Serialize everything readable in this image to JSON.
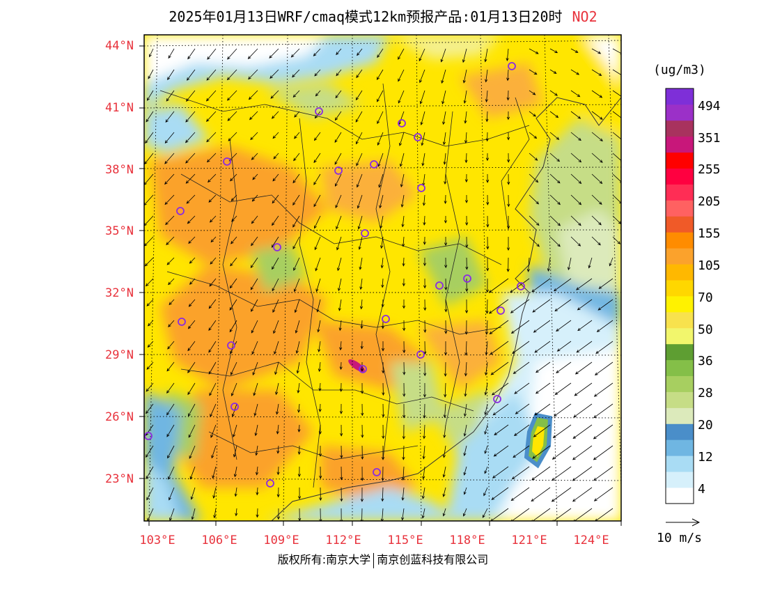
{
  "title": {
    "text": "2025年01月13日WRF/cmaq模式12km预报产品:01月13日20时",
    "pollutant": "NO2"
  },
  "axes": {
    "lat_labels": [
      "44°N",
      "41°N",
      "38°N",
      "35°N",
      "32°N",
      "29°N",
      "26°N",
      "23°N"
    ],
    "lon_labels": [
      "103°E",
      "106°E",
      "109°E",
      "112°E",
      "115°E",
      "118°E",
      "121°E",
      "124°E"
    ]
  },
  "colorbar": {
    "unit": "(ug/m3)",
    "colors": [
      "#ffffff",
      "#d6f0fb",
      "#a9dcf4",
      "#6fb6e2",
      "#4a8ec9",
      "#dceabb",
      "#c6dd86",
      "#a7cf60",
      "#84bf48",
      "#5e9e32",
      "#f2f66c",
      "#f8e24d",
      "#fff200",
      "#ffd700",
      "#ffb800",
      "#fba22c",
      "#ff8c00",
      "#f05a28",
      "#ff6161",
      "#ff2d55",
      "#ff0040",
      "#ff0000",
      "#c8177a",
      "#a8325e",
      "#9b30c8",
      "#7e2fd8"
    ],
    "labels": [
      "4",
      "12",
      "20",
      "28",
      "36",
      "50",
      "70",
      "105",
      "155",
      "205",
      "255",
      "351",
      "494"
    ]
  },
  "wind_reference": "10 m/s",
  "cities": [
    "c1",
    "c2",
    "c3",
    "c4",
    "c5",
    "c6",
    "c7",
    "c8",
    "c9",
    "c10",
    "c11",
    "c12",
    "c13",
    "c14",
    "c15",
    "c16",
    "c17",
    "c18",
    "c19",
    "c20",
    "c21",
    "c22",
    "c23",
    "c24",
    "c25"
  ],
  "footer": {
    "left": "版权所有:南京大学",
    "right": "南京创蓝科技有限公司"
  }
}
